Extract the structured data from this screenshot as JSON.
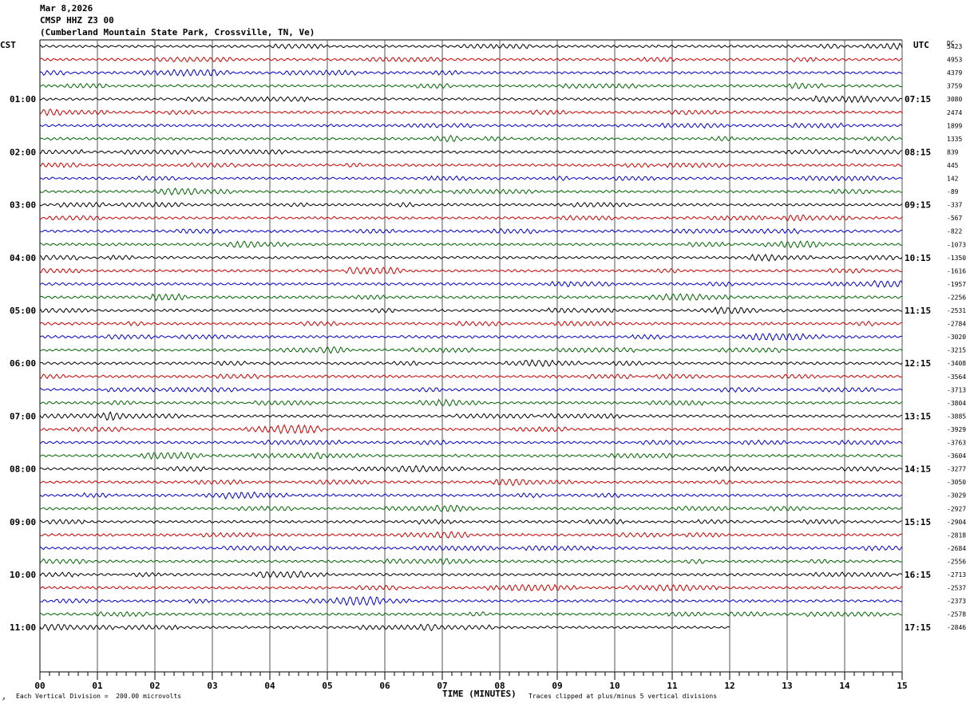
{
  "header": {
    "date": "Mar 8,2026",
    "station": "CMSP HHZ Z3 00",
    "location": "(Cumberland Mountain State Park, Crossville, TN, Ve)"
  },
  "left_axis_label": "CST",
  "right_axis_label": "UTC",
  "dc_label": "DC",
  "footer": {
    "vertical_division": "Each Vertical Division =  200.00 microvolts",
    "clip_note": "Traces clipped at plus/minus 5 vertical divisions",
    "x_title": "TIME (MINUTES)",
    "corner_mark": "↗"
  },
  "chart_data": {
    "type": "line",
    "title": "CMSP HHZ Z3 00",
    "xlabel": "TIME (MINUTES)",
    "xlim": [
      0,
      15
    ],
    "x_ticks": [
      "00",
      "01",
      "02",
      "03",
      "04",
      "05",
      "06",
      "07",
      "08",
      "09",
      "10",
      "11",
      "12",
      "13",
      "14",
      "15"
    ],
    "trace_minutes": 15,
    "trace_colors": [
      "#000000",
      "#cc0000",
      "#0000cc",
      "#006600"
    ],
    "cst_labels": [
      "01:00",
      "02:00",
      "03:00",
      "04:00",
      "05:00",
      "06:00",
      "07:00",
      "08:00",
      "09:00",
      "10:00",
      "11:00"
    ],
    "utc_labels": [
      "07:15",
      "08:15",
      "09:15",
      "10:15",
      "11:15",
      "12:15",
      "13:15",
      "14:15",
      "15:15",
      "16:15",
      "17:15"
    ],
    "dc_offsets": [
      "5423",
      "4953",
      "4379",
      "3759",
      "3080",
      "2474",
      "1899",
      "1335",
      "839",
      "445",
      "142",
      "-89",
      "-337",
      "-567",
      "-822",
      "-1073",
      "-1350",
      "-1616",
      "-1957",
      "-2256",
      "-2531",
      "-2784",
      "-3020",
      "-3215",
      "-3408",
      "-3564",
      "-3713",
      "-3804",
      "-3885",
      "-3929",
      "-3763",
      "-3604",
      "-3277",
      "-3050",
      "-3029",
      "-2927",
      "-2904",
      "-2818",
      "-2684",
      "-2556",
      "-2713",
      "-2537",
      "-2373",
      "-2578",
      "-2846"
    ],
    "last_trace_end_minute": 12,
    "scale_microvolts_per_division": 200.0
  }
}
